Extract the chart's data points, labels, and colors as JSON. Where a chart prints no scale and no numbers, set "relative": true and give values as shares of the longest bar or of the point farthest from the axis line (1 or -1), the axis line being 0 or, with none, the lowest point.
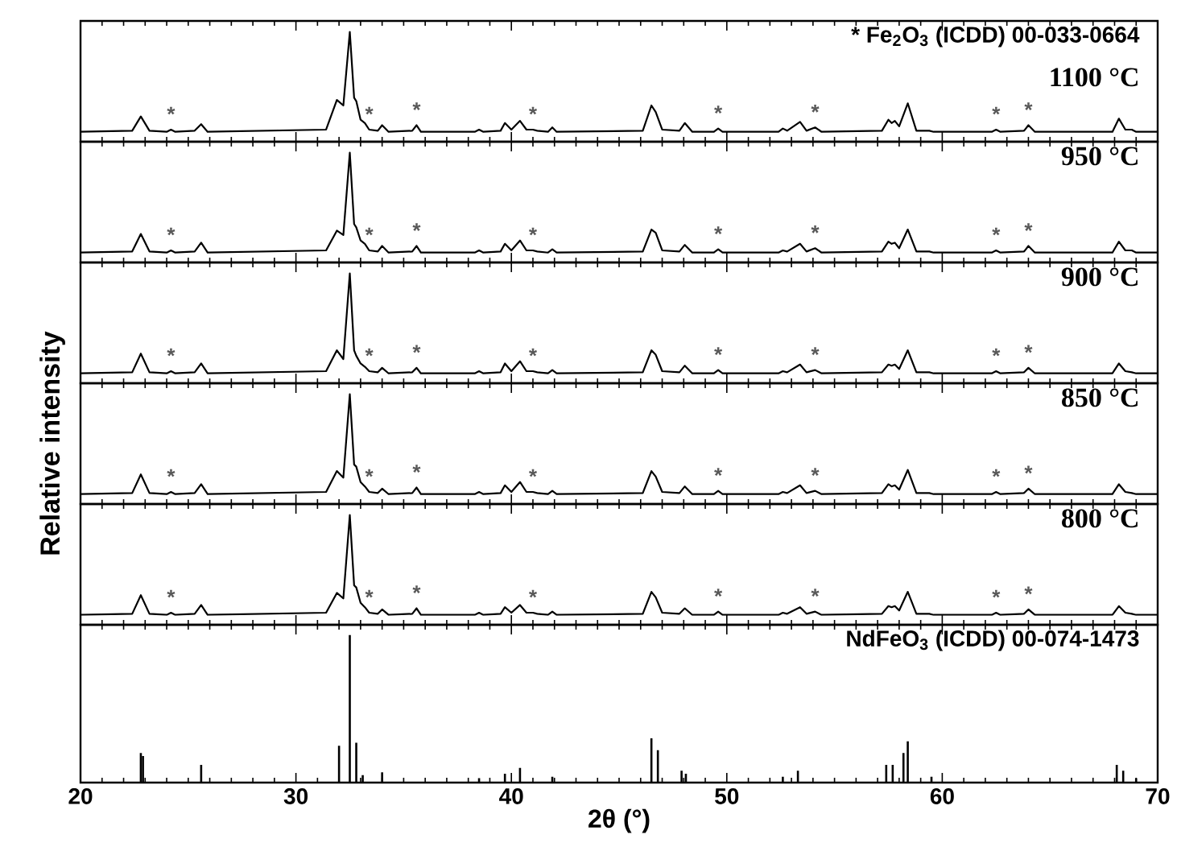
{
  "chart_data": [
    {
      "type": "line",
      "relative": true,
      "xlim": [
        20,
        70
      ],
      "xticks": [
        20,
        30,
        40,
        50,
        60,
        70
      ],
      "tick_labels": false,
      "x": [
        20,
        22.4,
        22.8,
        23.2,
        24.0,
        24.2,
        24.4,
        25.3,
        25.6,
        25.9,
        31.4,
        31.9,
        32.2,
        32.5,
        32.7,
        32.8,
        33.0,
        33.2,
        33.4,
        33.8,
        34.0,
        34.3,
        35.4,
        35.6,
        35.8,
        38.3,
        38.5,
        38.7,
        39.5,
        39.7,
        40.0,
        40.4,
        40.7,
        41.0,
        41.2,
        41.7,
        41.9,
        42.1,
        46.1,
        46.5,
        46.7,
        47.0,
        47.8,
        48.05,
        48.4,
        49.4,
        49.6,
        49.8,
        52.4,
        52.6,
        52.8,
        53.4,
        53.7,
        54.1,
        54.4,
        57.2,
        57.5,
        57.65,
        57.8,
        58.0,
        58.4,
        58.8,
        59.4,
        59.6,
        62.3,
        62.5,
        62.7,
        63.8,
        64.0,
        64.3,
        67.9,
        68.2,
        68.5,
        68.8,
        69.0,
        70
      ],
      "series": [
        {
          "color": "#000000",
          "values": [
            0.09,
            0.1,
            0.23,
            0.1,
            0.09,
            0.11,
            0.09,
            0.1,
            0.16,
            0.09,
            0.11,
            0.38,
            0.33,
            1.0,
            0.4,
            0.37,
            0.2,
            0.17,
            0.11,
            0.1,
            0.15,
            0.09,
            0.1,
            0.15,
            0.09,
            0.09,
            0.11,
            0.09,
            0.1,
            0.17,
            0.11,
            0.19,
            0.11,
            0.11,
            0.1,
            0.09,
            0.13,
            0.09,
            0.1,
            0.33,
            0.27,
            0.11,
            0.1,
            0.17,
            0.09,
            0.09,
            0.12,
            0.09,
            0.09,
            0.12,
            0.1,
            0.18,
            0.1,
            0.13,
            0.09,
            0.1,
            0.2,
            0.17,
            0.19,
            0.14,
            0.35,
            0.1,
            0.1,
            0.09,
            0.09,
            0.11,
            0.09,
            0.1,
            0.15,
            0.09,
            0.09,
            0.21,
            0.11,
            0.11,
            0.09,
            0.09
          ]
        }
      ],
      "annotations": [
        "* Fe$_{2}$O$_{3}$ (ICDD) 00-033-0664",
        "1100 °C",
        {
          "text": "*",
          "x": 24.2,
          "y": 0.11
        },
        {
          "text": "*",
          "x": 33.4,
          "y": 0.11
        },
        {
          "text": "*",
          "x": 35.6,
          "y": 0.15
        },
        {
          "text": "*",
          "x": 41.0,
          "y": 0.11
        },
        {
          "text": "*",
          "x": 49.6,
          "y": 0.12
        },
        {
          "text": "*",
          "x": 54.1,
          "y": 0.13
        },
        {
          "text": "*",
          "x": 62.5,
          "y": 0.11
        },
        {
          "text": "*",
          "x": 64.0,
          "y": 0.15
        }
      ]
    },
    {
      "type": "line",
      "relative": true,
      "xlim": [
        20,
        70
      ],
      "xticks": [
        20,
        30,
        40,
        50,
        60,
        70
      ],
      "tick_labels": false,
      "x": [
        20,
        22.4,
        22.8,
        23.2,
        24.0,
        24.2,
        24.4,
        25.3,
        25.6,
        25.9,
        31.4,
        31.9,
        32.2,
        32.5,
        32.7,
        32.8,
        33.0,
        33.2,
        33.4,
        33.8,
        34.0,
        34.3,
        35.4,
        35.6,
        35.8,
        38.3,
        38.5,
        38.7,
        39.5,
        39.7,
        40.0,
        40.4,
        40.7,
        41.0,
        41.2,
        41.7,
        41.9,
        42.1,
        46.1,
        46.5,
        46.7,
        47.0,
        47.8,
        48.05,
        48.4,
        49.4,
        49.6,
        49.8,
        52.4,
        52.6,
        52.8,
        53.4,
        53.7,
        54.1,
        54.4,
        57.2,
        57.5,
        57.65,
        57.8,
        58.0,
        58.4,
        58.8,
        59.4,
        59.6,
        62.3,
        62.5,
        62.7,
        63.8,
        64.0,
        64.3,
        67.9,
        68.2,
        68.5,
        68.8,
        69.0,
        70
      ],
      "series": [
        {
          "color": "#000000",
          "values": [
            0.09,
            0.1,
            0.26,
            0.1,
            0.09,
            0.11,
            0.09,
            0.1,
            0.18,
            0.09,
            0.11,
            0.29,
            0.25,
            1.0,
            0.35,
            0.32,
            0.2,
            0.17,
            0.11,
            0.1,
            0.15,
            0.09,
            0.1,
            0.15,
            0.09,
            0.09,
            0.11,
            0.09,
            0.1,
            0.17,
            0.11,
            0.2,
            0.11,
            0.11,
            0.1,
            0.09,
            0.12,
            0.09,
            0.1,
            0.3,
            0.27,
            0.11,
            0.1,
            0.16,
            0.09,
            0.09,
            0.12,
            0.09,
            0.09,
            0.11,
            0.1,
            0.17,
            0.1,
            0.13,
            0.09,
            0.1,
            0.19,
            0.17,
            0.18,
            0.13,
            0.3,
            0.1,
            0.1,
            0.09,
            0.09,
            0.11,
            0.09,
            0.1,
            0.15,
            0.09,
            0.09,
            0.19,
            0.11,
            0.11,
            0.09,
            0.09
          ]
        }
      ],
      "annotations": [
        "950 °C",
        {
          "text": "*",
          "x": 24.2,
          "y": 0.11
        },
        {
          "text": "*",
          "x": 33.4,
          "y": 0.11
        },
        {
          "text": "*",
          "x": 35.6,
          "y": 0.15
        },
        {
          "text": "*",
          "x": 41.0,
          "y": 0.11
        },
        {
          "text": "*",
          "x": 49.6,
          "y": 0.12
        },
        {
          "text": "*",
          "x": 54.1,
          "y": 0.13
        },
        {
          "text": "*",
          "x": 62.5,
          "y": 0.11
        },
        {
          "text": "*",
          "x": 64.0,
          "y": 0.15
        }
      ]
    },
    {
      "type": "line",
      "relative": true,
      "xlim": [
        20,
        70
      ],
      "xticks": [
        20,
        30,
        40,
        50,
        60,
        70
      ],
      "tick_labels": false,
      "x": [
        20,
        22.4,
        22.8,
        23.2,
        24.0,
        24.2,
        24.4,
        25.3,
        25.6,
        25.9,
        31.4,
        31.9,
        32.2,
        32.5,
        32.7,
        32.8,
        33.0,
        33.2,
        33.4,
        33.8,
        34.0,
        34.3,
        35.4,
        35.6,
        35.8,
        38.3,
        38.5,
        38.7,
        39.5,
        39.7,
        40.0,
        40.4,
        40.7,
        41.0,
        41.2,
        41.7,
        41.9,
        42.1,
        46.1,
        46.5,
        46.7,
        47.0,
        47.8,
        48.05,
        48.4,
        49.4,
        49.6,
        49.8,
        52.4,
        52.6,
        52.8,
        53.4,
        53.7,
        54.1,
        54.4,
        57.2,
        57.5,
        57.65,
        57.8,
        58.0,
        58.4,
        58.8,
        59.4,
        59.6,
        62.3,
        62.5,
        62.7,
        63.8,
        64.0,
        64.3,
        67.9,
        68.2,
        68.5,
        68.8,
        69.0,
        70
      ],
      "series": [
        {
          "color": "#000000",
          "values": [
            0.09,
            0.1,
            0.27,
            0.1,
            0.09,
            0.11,
            0.09,
            0.1,
            0.18,
            0.09,
            0.11,
            0.3,
            0.22,
            1.0,
            0.3,
            0.25,
            0.18,
            0.15,
            0.11,
            0.1,
            0.14,
            0.09,
            0.1,
            0.14,
            0.09,
            0.09,
            0.11,
            0.09,
            0.1,
            0.18,
            0.11,
            0.2,
            0.11,
            0.11,
            0.1,
            0.09,
            0.12,
            0.09,
            0.1,
            0.3,
            0.26,
            0.11,
            0.1,
            0.16,
            0.09,
            0.09,
            0.12,
            0.09,
            0.09,
            0.11,
            0.1,
            0.17,
            0.1,
            0.12,
            0.09,
            0.1,
            0.17,
            0.16,
            0.17,
            0.13,
            0.3,
            0.1,
            0.1,
            0.09,
            0.09,
            0.11,
            0.09,
            0.1,
            0.14,
            0.09,
            0.09,
            0.18,
            0.11,
            0.1,
            0.09,
            0.09
          ]
        }
      ],
      "annotations": [
        "900 °C",
        {
          "text": "*",
          "x": 24.2,
          "y": 0.11
        },
        {
          "text": "*",
          "x": 33.4,
          "y": 0.11
        },
        {
          "text": "*",
          "x": 35.6,
          "y": 0.14
        },
        {
          "text": "*",
          "x": 41.0,
          "y": 0.11
        },
        {
          "text": "*",
          "x": 49.6,
          "y": 0.12
        },
        {
          "text": "*",
          "x": 54.1,
          "y": 0.12
        },
        {
          "text": "*",
          "x": 62.5,
          "y": 0.11
        },
        {
          "text": "*",
          "x": 64.0,
          "y": 0.14
        }
      ]
    },
    {
      "type": "line",
      "relative": true,
      "xlim": [
        20,
        70
      ],
      "xticks": [
        20,
        30,
        40,
        50,
        60,
        70
      ],
      "tick_labels": false,
      "ylabel": "Relative intensity",
      "x": [
        20,
        22.4,
        22.8,
        23.2,
        24.0,
        24.2,
        24.4,
        25.3,
        25.6,
        25.9,
        31.4,
        31.9,
        32.2,
        32.5,
        32.7,
        32.8,
        33.0,
        33.2,
        33.4,
        33.8,
        34.0,
        34.3,
        35.4,
        35.6,
        35.8,
        38.3,
        38.5,
        38.7,
        39.5,
        39.7,
        40.0,
        40.4,
        40.7,
        41.0,
        41.2,
        41.7,
        41.9,
        42.1,
        46.1,
        46.5,
        46.7,
        47.0,
        47.8,
        48.05,
        48.4,
        49.4,
        49.6,
        49.8,
        52.4,
        52.6,
        52.8,
        53.4,
        53.7,
        54.1,
        54.4,
        57.2,
        57.5,
        57.65,
        57.8,
        58.0,
        58.4,
        58.8,
        59.4,
        59.6,
        62.3,
        62.5,
        62.7,
        63.8,
        64.0,
        64.3,
        67.9,
        68.2,
        68.5,
        68.8,
        69.0,
        70
      ],
      "series": [
        {
          "color": "#000000",
          "values": [
            0.09,
            0.1,
            0.27,
            0.1,
            0.09,
            0.11,
            0.09,
            0.1,
            0.18,
            0.09,
            0.11,
            0.3,
            0.24,
            1.0,
            0.36,
            0.34,
            0.2,
            0.16,
            0.11,
            0.1,
            0.14,
            0.09,
            0.1,
            0.15,
            0.09,
            0.09,
            0.11,
            0.09,
            0.1,
            0.17,
            0.11,
            0.2,
            0.11,
            0.11,
            0.1,
            0.09,
            0.12,
            0.09,
            0.1,
            0.3,
            0.25,
            0.11,
            0.1,
            0.16,
            0.09,
            0.09,
            0.12,
            0.09,
            0.09,
            0.11,
            0.1,
            0.17,
            0.1,
            0.12,
            0.09,
            0.1,
            0.18,
            0.16,
            0.17,
            0.13,
            0.31,
            0.1,
            0.1,
            0.09,
            0.09,
            0.11,
            0.09,
            0.1,
            0.14,
            0.09,
            0.09,
            0.18,
            0.11,
            0.1,
            0.09,
            0.09
          ]
        }
      ],
      "annotations": [
        "850 °C",
        {
          "text": "*",
          "x": 24.2,
          "y": 0.11
        },
        {
          "text": "*",
          "x": 33.4,
          "y": 0.11
        },
        {
          "text": "*",
          "x": 35.6,
          "y": 0.15
        },
        {
          "text": "*",
          "x": 41.0,
          "y": 0.11
        },
        {
          "text": "*",
          "x": 49.6,
          "y": 0.12
        },
        {
          "text": "*",
          "x": 54.1,
          "y": 0.12
        },
        {
          "text": "*",
          "x": 62.5,
          "y": 0.11
        },
        {
          "text": "*",
          "x": 64.0,
          "y": 0.14
        }
      ]
    },
    {
      "type": "line",
      "relative": true,
      "xlim": [
        20,
        70
      ],
      "xticks": [
        20,
        30,
        40,
        50,
        60,
        70
      ],
      "tick_labels": false,
      "x": [
        20,
        22.4,
        22.8,
        23.2,
        24.0,
        24.2,
        24.4,
        25.3,
        25.6,
        25.9,
        31.4,
        31.9,
        32.2,
        32.5,
        32.7,
        32.8,
        33.0,
        33.2,
        33.4,
        33.8,
        34.0,
        34.3,
        35.4,
        35.6,
        35.8,
        38.3,
        38.5,
        38.7,
        39.5,
        39.7,
        40.0,
        40.4,
        40.7,
        41.0,
        41.2,
        41.7,
        41.9,
        42.1,
        46.1,
        46.5,
        46.7,
        47.0,
        47.8,
        48.05,
        48.4,
        49.4,
        49.6,
        49.8,
        52.4,
        52.6,
        52.8,
        53.4,
        53.7,
        54.1,
        54.4,
        57.2,
        57.5,
        57.65,
        57.8,
        58.0,
        58.4,
        58.8,
        59.4,
        59.6,
        62.3,
        62.5,
        62.7,
        63.8,
        64.0,
        64.3,
        67.9,
        68.2,
        68.5,
        68.8,
        69.0,
        70
      ],
      "series": [
        {
          "color": "#000000",
          "values": [
            0.09,
            0.1,
            0.27,
            0.1,
            0.09,
            0.11,
            0.09,
            0.1,
            0.18,
            0.09,
            0.11,
            0.29,
            0.24,
            1.0,
            0.36,
            0.34,
            0.2,
            0.16,
            0.11,
            0.1,
            0.14,
            0.09,
            0.1,
            0.15,
            0.09,
            0.09,
            0.11,
            0.09,
            0.1,
            0.16,
            0.11,
            0.18,
            0.11,
            0.11,
            0.1,
            0.09,
            0.12,
            0.09,
            0.1,
            0.3,
            0.25,
            0.11,
            0.1,
            0.15,
            0.09,
            0.09,
            0.12,
            0.09,
            0.09,
            0.11,
            0.1,
            0.16,
            0.1,
            0.12,
            0.09,
            0.1,
            0.17,
            0.16,
            0.17,
            0.13,
            0.3,
            0.1,
            0.1,
            0.09,
            0.09,
            0.11,
            0.09,
            0.1,
            0.14,
            0.09,
            0.09,
            0.17,
            0.11,
            0.1,
            0.09,
            0.09
          ]
        }
      ],
      "annotations": [
        "800 °C",
        {
          "text": "*",
          "x": 24.2,
          "y": 0.11
        },
        {
          "text": "*",
          "x": 33.4,
          "y": 0.11
        },
        {
          "text": "*",
          "x": 35.6,
          "y": 0.15
        },
        {
          "text": "*",
          "x": 41.0,
          "y": 0.11
        },
        {
          "text": "*",
          "x": 49.6,
          "y": 0.12
        },
        {
          "text": "*",
          "x": 54.1,
          "y": 0.12
        },
        {
          "text": "*",
          "x": 62.5,
          "y": 0.11
        },
        {
          "text": "*",
          "x": 64.0,
          "y": 0.14
        }
      ]
    },
    {
      "type": "bar",
      "relative": true,
      "xlim": [
        20,
        70
      ],
      "xticks": [
        20,
        30,
        40,
        50,
        60,
        70
      ],
      "tick_labels": "x",
      "xlabel": "2θ (°)",
      "x": [
        22.8,
        22.9,
        25.6,
        32.0,
        32.5,
        32.8,
        33.1,
        34.0,
        38.5,
        39.7,
        40.4,
        41.9,
        46.5,
        46.8,
        47.9,
        48.1,
        52.6,
        53.3,
        57.4,
        57.7,
        58.2,
        58.4,
        59.5,
        68.1,
        68.4,
        69.0
      ],
      "series": [
        {
          "color": "#000000",
          "values": [
            0.2,
            0.18,
            0.12,
            0.25,
            1.0,
            0.27,
            0.05,
            0.07,
            0.03,
            0.06,
            0.1,
            0.04,
            0.3,
            0.22,
            0.08,
            0.06,
            0.04,
            0.08,
            0.12,
            0.12,
            0.2,
            0.28,
            0.04,
            0.12,
            0.08,
            0.03
          ]
        }
      ],
      "annotations": [
        "NdFeO$_{3}$ (ICDD) 00-074-1473"
      ]
    }
  ]
}
